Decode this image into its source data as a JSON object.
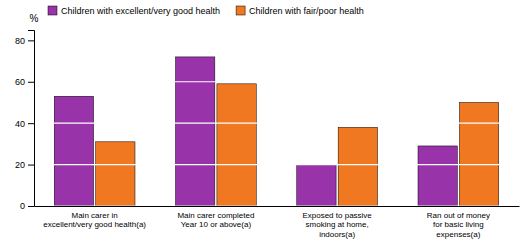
{
  "chart_data": {
    "type": "bar",
    "y_label": "%",
    "categories": [
      "Main carer in\nexcellent/very good health(a)",
      "Main carer completed\nYear 10 or above(a)",
      "Exposed to passive\nsmoking at home,\nindoors(a)",
      "Ran out of money\nfor basic living\nexpenses(a)"
    ],
    "series": [
      {
        "name": "Children with excellent/very good health",
        "color": "#9933AA",
        "values": [
          53,
          72,
          20,
          29
        ]
      },
      {
        "name": "Children with fair/poor health",
        "color": "#F07820",
        "values": [
          31,
          59,
          38,
          50
        ]
      }
    ],
    "ylim": [
      0,
      85
    ],
    "yticks": [
      0,
      20,
      40,
      60,
      80
    ],
    "grid": true,
    "legend": "upper left"
  }
}
